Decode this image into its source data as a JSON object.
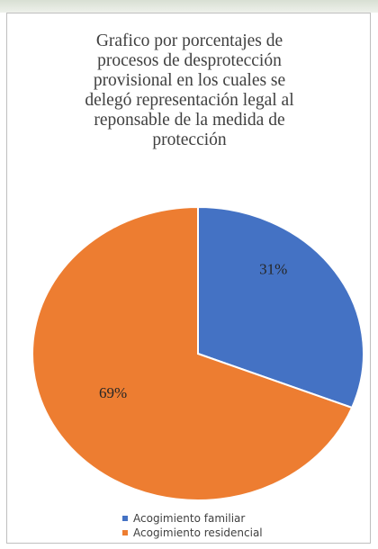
{
  "chart_data": {
    "type": "pie",
    "title": "Grafico por porcentajes de procesos de desprotección provisional en los cuales se delegó representación legal al reponsable de la medida de protección",
    "title_lines": [
      "Grafico por porcentajes de",
      "procesos de desprotección",
      "provisional en los cuales se",
      "delegó representación legal al",
      "reponsable de la medida de",
      "protección"
    ],
    "categories": [
      "Acogimiento familiar",
      "Acogimiento residencial"
    ],
    "values": [
      31,
      69
    ],
    "data_labels": [
      "31%",
      "69%"
    ],
    "colors": [
      "#4472c4",
      "#ed7d31"
    ],
    "legend_position": "bottom"
  }
}
